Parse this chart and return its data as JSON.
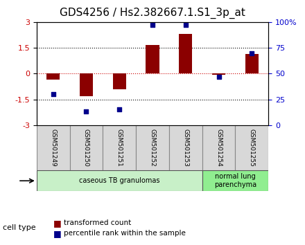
{
  "title": "GDS4256 / Hs2.382667.1.S1_3p_at",
  "samples": [
    "GSM501249",
    "GSM501250",
    "GSM501251",
    "GSM501252",
    "GSM501253",
    "GSM501254",
    "GSM501255"
  ],
  "transformed_counts": [
    -0.35,
    -1.3,
    -0.9,
    1.65,
    2.3,
    -0.07,
    1.15
  ],
  "percentile_ranks": [
    30,
    13,
    15,
    97,
    97,
    47,
    70
  ],
  "ylim": [
    -3,
    3
  ],
  "yticks_left": [
    -3,
    -1.5,
    0,
    1.5,
    3
  ],
  "yticks_right": [
    0,
    25,
    50,
    75,
    100
  ],
  "bar_color": "#8B0000",
  "dot_color": "#00008B",
  "cell_type_groups": [
    {
      "label": "caseous TB granulomas",
      "samples": [
        0,
        1,
        2,
        3,
        4
      ],
      "color": "#c8f0c8"
    },
    {
      "label": "normal lung\nparenchyma",
      "samples": [
        5,
        6
      ],
      "color": "#90ee90"
    }
  ],
  "legend_bar_label": "transformed count",
  "legend_dot_label": "percentile rank within the sample",
  "cell_type_label": "cell type",
  "background_color": "#ffffff",
  "plot_bg_color": "#ffffff",
  "title_fontsize": 11,
  "tick_fontsize": 8,
  "label_fontsize": 8
}
